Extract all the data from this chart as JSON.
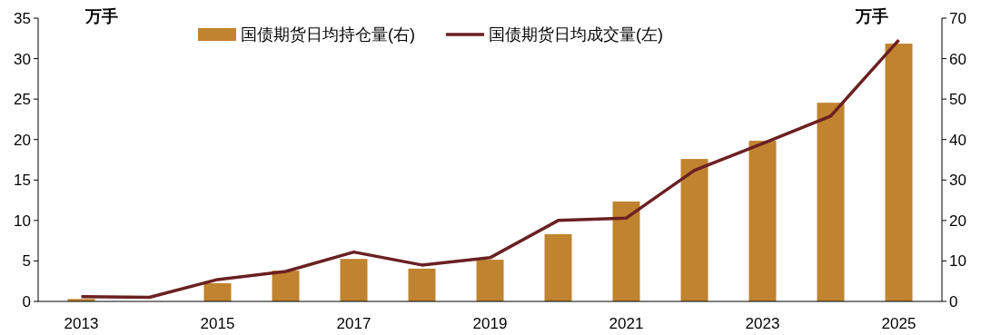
{
  "chart_data": {
    "type": "bar",
    "ylabel": "万手",
    "y2label": "万手",
    "categories": [
      "2013",
      null,
      "2015",
      null,
      "2017",
      null,
      "2019",
      null,
      "2021",
      null,
      "2023",
      null,
      "2025"
    ],
    "series": [
      {
        "name": "国债期货日均持仓量(右)",
        "axis": "y2",
        "color": "#c0832f",
        "values": [
          0.6,
          null,
          4.5,
          7.6,
          10.5,
          8.1,
          10.3,
          16.6,
          24.7,
          35.2,
          39.7,
          49.1,
          63.7
        ]
      },
      {
        "name": "国债期货日均成交量(左)",
        "type": "line",
        "color": "#6b2022",
        "values": [
          0.6,
          0.5,
          2.7,
          3.7,
          6.1,
          4.5,
          5.4,
          10.0,
          10.3,
          16.2,
          19.5,
          22.9,
          32.3
        ]
      }
    ],
    "ylim": [
      0,
      35
    ],
    "yticks": [
      0,
      5,
      10,
      15,
      20,
      25,
      30,
      35
    ],
    "y2lim": [
      0,
      70
    ],
    "y2ticks": [
      0,
      10,
      20,
      30,
      40,
      50,
      60,
      70
    ],
    "legend": "top",
    "line_style": "solid"
  }
}
